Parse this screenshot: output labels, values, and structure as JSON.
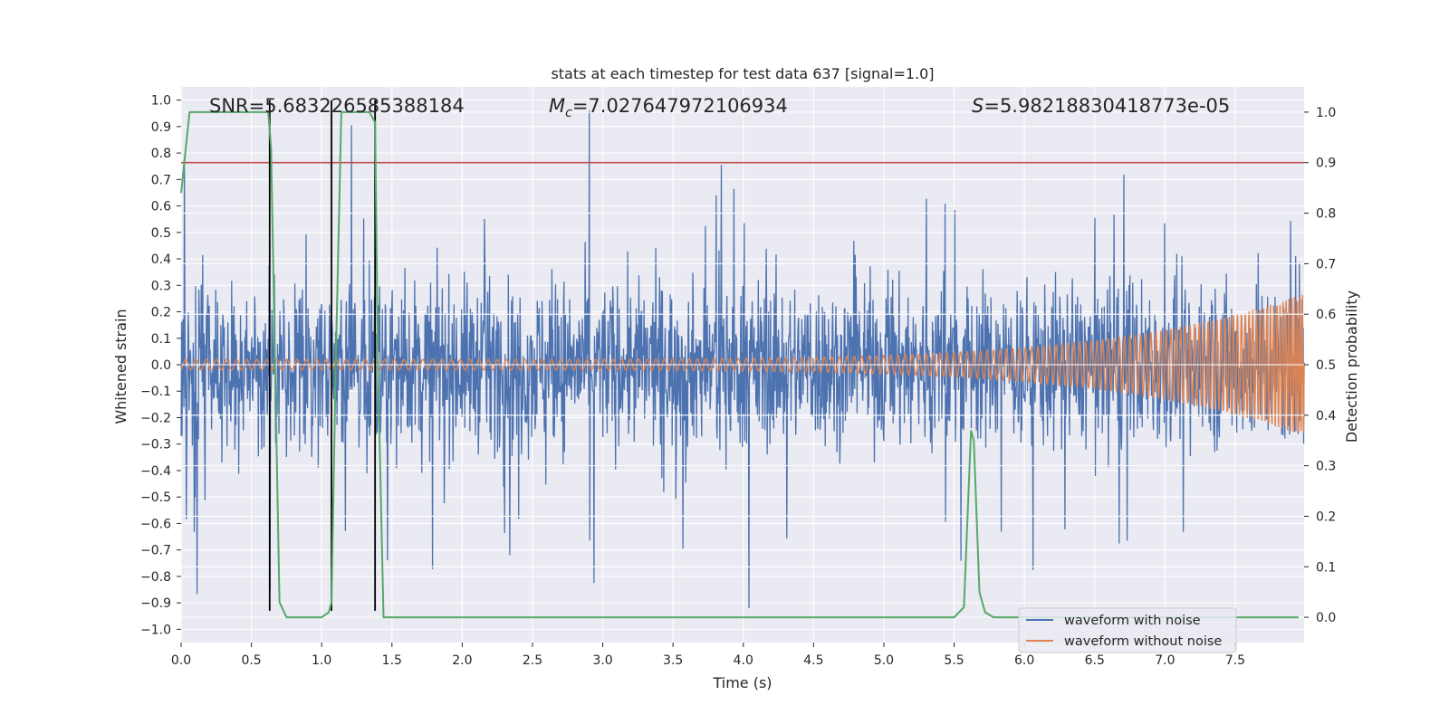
{
  "chart_data": {
    "type": "line",
    "title": "stats at each timestep for test data 637 [signal=1.0]",
    "xlabel": "Time (s)",
    "ylabel": "Whitened strain",
    "y2label": "Detection probability",
    "xlim": [
      0.0,
      7.99
    ],
    "ylim": [
      -1.05,
      1.05
    ],
    "y2lim": [
      -0.05,
      1.05
    ],
    "x_ticks": [
      "0.0",
      "0.5",
      "1.0",
      "1.5",
      "2.0",
      "2.5",
      "3.0",
      "3.5",
      "4.0",
      "4.5",
      "5.0",
      "5.5",
      "6.0",
      "6.5",
      "7.0",
      "7.5"
    ],
    "y_ticks": [
      "1.0",
      "0.9",
      "0.8",
      "0.7",
      "0.6",
      "0.5",
      "0.4",
      "0.3",
      "0.2",
      "0.1",
      "0.0",
      "−0.1",
      "−0.2",
      "−0.3",
      "−0.4",
      "−0.5",
      "−0.6",
      "−0.7",
      "−0.8",
      "−0.9",
      "−1.0"
    ],
    "y2_ticks": [
      "1.0",
      "0.9",
      "0.8",
      "0.7",
      "0.6",
      "0.5",
      "0.4",
      "0.3",
      "0.2",
      "0.1",
      "0.0"
    ],
    "grid": true,
    "legend_position": "lower right",
    "annotations": {
      "snr_prefix": "SNR",
      "snr_value": "=5.683226585388184",
      "mc_symbol": "M",
      "mc_subscript": "c",
      "mc_value": "=7.027647972106934",
      "s_symbol": "S",
      "s_value": "=5.98218830418773e-05"
    },
    "threshold": {
      "value": 0.9,
      "axis": "detection probability",
      "color": "#c44e52"
    },
    "vertical_markers_x": [
      0.63,
      1.07,
      1.38
    ],
    "series": [
      {
        "name": "waveform with noise",
        "color": "#4c72b0",
        "approx_envelope": [
          -0.93,
          1.0
        ]
      },
      {
        "name": "waveform without noise",
        "color": "#dd8452",
        "amplitude_start": 0.02,
        "amplitude_end": 0.3,
        "approx_cycles": 160
      },
      {
        "color": "#55a868",
        "x": [
          0.0,
          0.06,
          0.1,
          0.3,
          0.62,
          0.64,
          0.7,
          0.75,
          0.85,
          1.0,
          1.05,
          1.07,
          1.1,
          1.14,
          1.2,
          1.34,
          1.38,
          1.4,
          1.44,
          1.5,
          2.0,
          3.0,
          4.0,
          5.0,
          5.5,
          5.57,
          5.62,
          5.64,
          5.68,
          5.72,
          5.78,
          6.0,
          7.0,
          7.95
        ],
        "values": [
          0.84,
          1.0,
          1.0,
          1.0,
          1.0,
          0.93,
          0.03,
          0.0,
          0.0,
          0.0,
          0.01,
          0.03,
          0.5,
          1.0,
          1.0,
          1.0,
          0.98,
          0.5,
          0.0,
          0.0,
          0.0,
          0.0,
          0.0,
          0.0,
          0.0,
          0.02,
          0.37,
          0.35,
          0.05,
          0.01,
          0.0,
          0.0,
          0.0,
          0.0
        ]
      }
    ]
  }
}
